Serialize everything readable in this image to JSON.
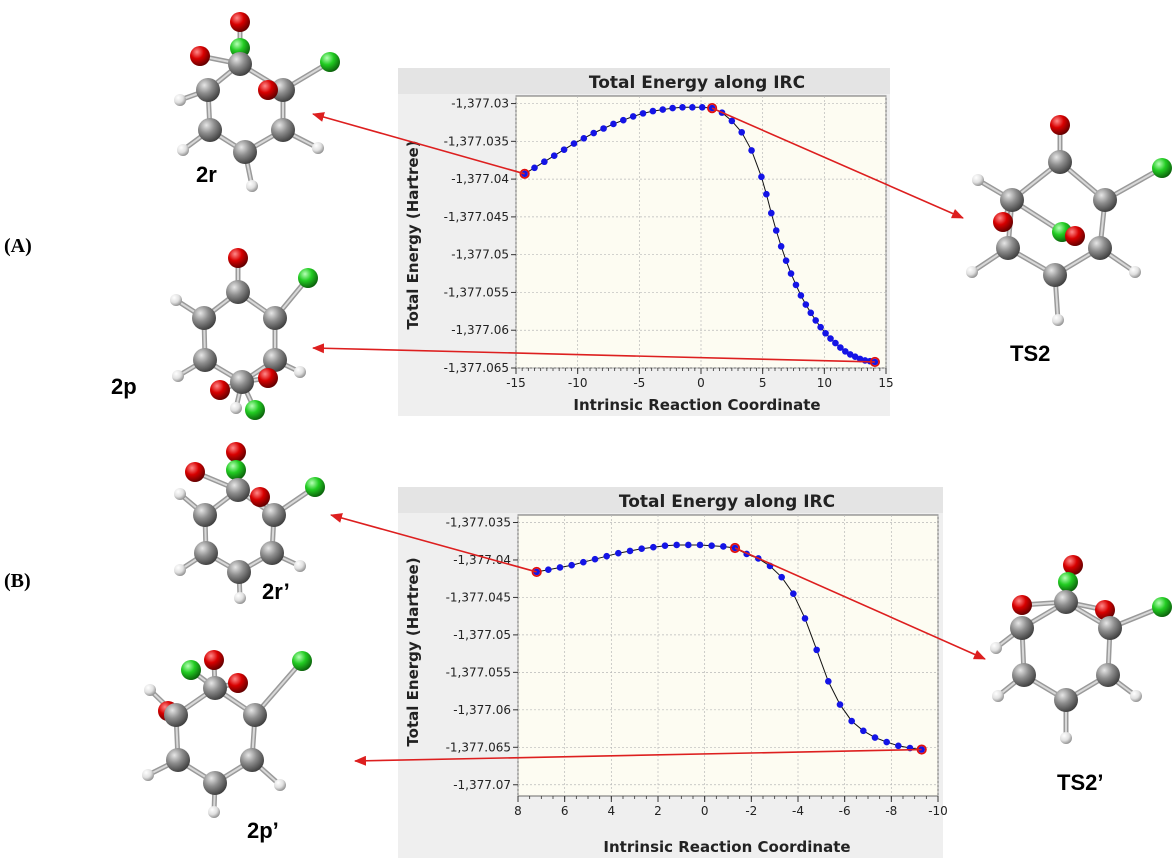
{
  "panels": {
    "a_label": "(A)",
    "b_label": "(B)"
  },
  "molecules": {
    "a_reactant": "2r",
    "a_product": "2p",
    "a_ts": "TS2",
    "b_reactant": "2r’",
    "b_product": "2p’",
    "b_ts": "TS2’"
  },
  "colors": {
    "series": "#1414e6",
    "line": "#111111",
    "highlight": "#e01010",
    "arrow": "#dd1f1f",
    "plot_bg": "#fdfcf2",
    "frame_bg": "#efefef",
    "carbon": "#8a8a8a",
    "oxygen": "#d10000",
    "chlorine": "#22cc22",
    "hydrogen": "#e8e8e8"
  },
  "chart_data": [
    {
      "type": "scatter",
      "title": "Total Energy along IRC",
      "xlabel": "Intrinsic Reaction Coordinate",
      "ylabel": "Total Energy (Hartree)",
      "xlim": [
        -15,
        15
      ],
      "ylim": [
        -1377.065,
        -1377.029
      ],
      "xticks": [
        -15,
        -10,
        -5,
        0,
        5,
        10,
        15
      ],
      "xtick_labels": [
        "-15",
        "-10",
        "-5",
        "0",
        "5",
        "10",
        "15"
      ],
      "yticks": [
        -1377.03,
        -1377.035,
        -1377.04,
        -1377.045,
        -1377.05,
        -1377.055,
        -1377.06,
        -1377.065
      ],
      "ytick_labels": [
        "-1,377.03",
        "-1,377.035",
        "-1,377.04",
        "-1,377.045",
        "-1,377.05",
        "-1,377.055",
        "-1,377.06",
        "-1,377.065"
      ],
      "grid": true,
      "series": [
        {
          "x": [
            -14.3,
            -13.5,
            -12.7,
            -11.9,
            -11.1,
            -10.3,
            -9.5,
            -8.7,
            -7.9,
            -7.1,
            -6.3,
            -5.5,
            -4.7,
            -3.9,
            -3.1,
            -2.3,
            -1.5,
            -0.7,
            0.1,
            0.9,
            1.7,
            2.5,
            3.3,
            4.1,
            4.9,
            5.3,
            5.7,
            6.1,
            6.5,
            6.9,
            7.3,
            7.7,
            8.1,
            8.5,
            8.9,
            9.3,
            9.7,
            10.1,
            10.5,
            10.9,
            11.3,
            11.7,
            12.1,
            12.5,
            12.9,
            13.3,
            13.7,
            14.1
          ],
          "y": [
            -1377.0393,
            -1377.0385,
            -1377.0377,
            -1377.0369,
            -1377.0361,
            -1377.0353,
            -1377.0346,
            -1377.0339,
            -1377.0333,
            -1377.0327,
            -1377.0322,
            -1377.0317,
            -1377.0313,
            -1377.031,
            -1377.0308,
            -1377.0306,
            -1377.0305,
            -1377.0305,
            -1377.0305,
            -1377.0306,
            -1377.0312,
            -1377.0323,
            -1377.0338,
            -1377.0362,
            -1377.0397,
            -1377.042,
            -1377.0445,
            -1377.0468,
            -1377.0489,
            -1377.0508,
            -1377.0525,
            -1377.054,
            -1377.0554,
            -1377.0566,
            -1377.0577,
            -1377.0587,
            -1377.0596,
            -1377.0604,
            -1377.0611,
            -1377.0617,
            -1377.0623,
            -1377.0628,
            -1377.0632,
            -1377.0635,
            -1377.0638,
            -1377.064,
            -1377.0641,
            -1377.0642
          ]
        }
      ],
      "highlighted_points": [
        {
          "x": -14.3,
          "y": -1377.0393
        },
        {
          "x": 0.9,
          "y": -1377.0306
        },
        {
          "x": 14.1,
          "y": -1377.0642
        }
      ]
    },
    {
      "type": "scatter",
      "title": "Total Energy along IRC",
      "xlabel": "Intrinsic Reaction Coordinate",
      "ylabel": "Total Energy (Hartree)",
      "xlim": [
        8,
        -10
      ],
      "x_reversed": true,
      "ylim": [
        -1377.0715,
        -1377.034
      ],
      "xticks": [
        8,
        6,
        4,
        2,
        0,
        -2,
        -4,
        -6,
        -8,
        -10
      ],
      "xtick_labels": [
        "8",
        "6",
        "4",
        "2",
        "0",
        "-2",
        "-4",
        "-6",
        "-8",
        "-10"
      ],
      "yticks": [
        -1377.035,
        -1377.04,
        -1377.045,
        -1377.05,
        -1377.055,
        -1377.06,
        -1377.065,
        -1377.07
      ],
      "ytick_labels": [
        "-1,377.035",
        "-1,377.04",
        "-1,377.045",
        "-1,377.05",
        "-1,377.055",
        "-1,377.06",
        "-1,377.065",
        "-1,377.07"
      ],
      "grid": true,
      "series": [
        {
          "x": [
            7.2,
            6.7,
            6.2,
            5.7,
            5.2,
            4.7,
            4.2,
            3.7,
            3.2,
            2.7,
            2.2,
            1.7,
            1.2,
            0.7,
            0.2,
            -0.3,
            -0.8,
            -1.3,
            -1.8,
            -2.3,
            -2.8,
            -3.3,
            -3.8,
            -4.3,
            -4.8,
            -5.3,
            -5.8,
            -6.3,
            -6.8,
            -7.3,
            -7.8,
            -8.3,
            -8.8,
            -9.3
          ],
          "y": [
            -1377.0416,
            -1377.0413,
            -1377.041,
            -1377.0407,
            -1377.0403,
            -1377.0399,
            -1377.0395,
            -1377.0391,
            -1377.0388,
            -1377.0385,
            -1377.0383,
            -1377.0381,
            -1377.038,
            -1377.038,
            -1377.038,
            -1377.0381,
            -1377.0382,
            -1377.0384,
            -1377.0392,
            -1377.0398,
            -1377.0408,
            -1377.0423,
            -1377.0445,
            -1377.0478,
            -1377.052,
            -1377.0562,
            -1377.0593,
            -1377.0615,
            -1377.0628,
            -1377.0637,
            -1377.0643,
            -1377.0648,
            -1377.0651,
            -1377.0653
          ]
        }
      ],
      "highlighted_points": [
        {
          "x": 7.2,
          "y": -1377.0416
        },
        {
          "x": -1.3,
          "y": -1377.0384
        },
        {
          "x": -9.3,
          "y": -1377.0653
        }
      ]
    }
  ]
}
